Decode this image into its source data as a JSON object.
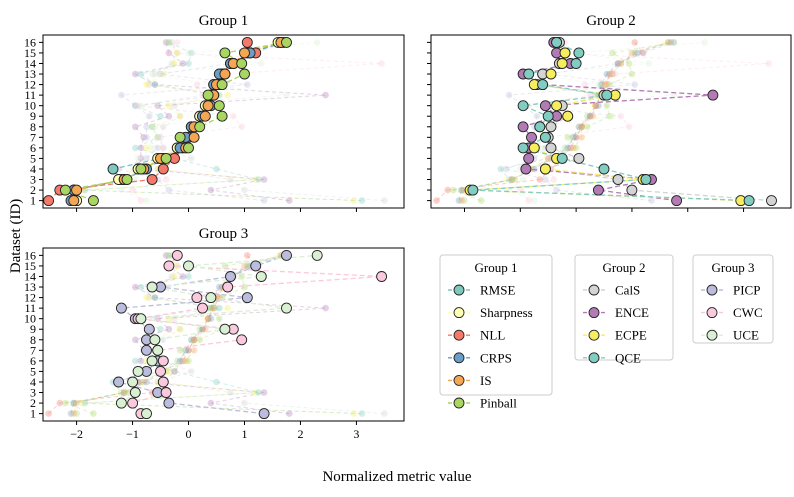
{
  "figure": {
    "ylabel": "Dataset (ID)",
    "xlabel": "Normalized metric value"
  },
  "colors": {
    "RMSE": "#7fc8bd",
    "Sharpness": "#ffffb3",
    "NLL": "#f4796a",
    "CRPS": "#6c9dc6",
    "IS": "#f5a653",
    "Pinball": "#a8d660",
    "CalS": "#d4d4d4",
    "ENCE": "#b27bb5",
    "ECPE": "#f7ee5f",
    "QCE": "#82cdc2",
    "PICP": "#bcbddc",
    "CWC": "#fbc9de",
    "UCE": "#d9f0d3"
  },
  "chart_data": [
    {
      "type": "line",
      "title": "Group 1",
      "xlim": [
        -2.6,
        3.85
      ],
      "ylim": [
        0.3,
        16.7
      ],
      "x_ticks": [
        -2,
        -1,
        0,
        1,
        2,
        3
      ],
      "x_tick_labels": [],
      "y_ticks": [
        1,
        2,
        3,
        4,
        5,
        6,
        7,
        8,
        9,
        10,
        11,
        12,
        13,
        14,
        15,
        16
      ],
      "y": [
        1,
        2,
        3,
        4,
        5,
        6,
        7,
        8,
        9,
        10,
        11,
        12,
        13,
        14,
        15,
        16
      ],
      "series": [
        {
          "name": "RMSE",
          "x": [
            -2.0,
            -2.05,
            -1.2,
            -1.35,
            -0.5,
            -0.2,
            0.0,
            0.1,
            0.2,
            0.35,
            0.45,
            0.45,
            0.65,
            0.8,
            1.05,
            1.65
          ]
        },
        {
          "name": "Sharpness",
          "x": [
            -2.0,
            -2.05,
            -1.25,
            -0.9,
            -0.55,
            -0.2,
            -0.05,
            0.05,
            0.2,
            0.3,
            0.4,
            0.5,
            0.6,
            0.8,
            1.1,
            1.6
          ]
        },
        {
          "name": "NLL",
          "x": [
            -2.5,
            -2.3,
            -0.65,
            -0.45,
            -0.25,
            -0.1,
            0.0,
            0.1,
            0.25,
            0.35,
            0.45,
            0.55,
            0.6,
            0.75,
            1.2,
            1.05
          ]
        },
        {
          "name": "CRPS",
          "x": [
            -2.1,
            -2.05,
            -1.15,
            -0.75,
            -0.45,
            -0.15,
            -0.05,
            0.05,
            0.25,
            0.4,
            0.4,
            0.45,
            0.55,
            0.75,
            1.1,
            1.7
          ]
        },
        {
          "name": "IS",
          "x": [
            -2.05,
            -2.0,
            -1.15,
            -0.8,
            -0.5,
            -0.05,
            0.1,
            0.1,
            0.3,
            0.35,
            0.45,
            0.5,
            0.65,
            0.8,
            1.0,
            1.65
          ]
        },
        {
          "name": "Pinball",
          "x": [
            -1.7,
            -2.2,
            -1.1,
            -0.85,
            -0.4,
            0.0,
            -0.15,
            0.2,
            0.6,
            0.55,
            0.35,
            0.6,
            1.0,
            0.95,
            0.65,
            1.75
          ]
        }
      ]
    },
    {
      "type": "line",
      "title": "Group 2",
      "xlim": [
        -2.6,
        3.85
      ],
      "ylim": [
        0.3,
        16.7
      ],
      "x_ticks": [
        -2,
        -1,
        0,
        1,
        2,
        3
      ],
      "x_tick_labels": [],
      "y_ticks": [
        1,
        2,
        3,
        4,
        5,
        6,
        7,
        8,
        9,
        10,
        11,
        12,
        13,
        14,
        15,
        16
      ],
      "y_tick_labels": [],
      "series": [
        {
          "name": "CalS",
          "x": [
            3.5,
            1.0,
            0.75,
            -0.55,
            0.05,
            -0.45,
            -0.5,
            -0.45,
            -0.15,
            -0.25,
            0.5,
            -0.7,
            -0.6,
            -0.3,
            -0.2,
            -0.3
          ]
        },
        {
          "name": "ENCE",
          "x": [
            1.8,
            0.4,
            1.35,
            -0.9,
            -0.85,
            -0.85,
            -0.8,
            -0.95,
            -0.35,
            -0.55,
            2.45,
            -0.6,
            -0.95,
            -0.1,
            -0.35,
            -0.4
          ]
        },
        {
          "name": "ECPE",
          "x": [
            2.95,
            -1.9,
            1.2,
            -0.55,
            -0.35,
            -0.75,
            -0.55,
            -0.65,
            -0.15,
            -0.35,
            0.7,
            -0.75,
            -0.45,
            -0.25,
            -0.2,
            -0.35
          ]
        },
        {
          "name": "QCE",
          "x": [
            3.1,
            -1.85,
            1.25,
            0.5,
            -0.25,
            -0.95,
            -0.55,
            -0.65,
            -0.5,
            -0.95,
            0.55,
            -0.6,
            -0.85,
            0.0,
            0.05,
            -0.35
          ]
        }
      ]
    },
    {
      "type": "line",
      "title": "Group 3",
      "xlim": [
        -2.6,
        3.85
      ],
      "ylim": [
        0.3,
        16.7
      ],
      "x_ticks": [
        -2,
        -1,
        0,
        1,
        2,
        3
      ],
      "x_tick_labels": [
        "−2",
        "−1",
        "0",
        "1",
        "2",
        "3"
      ],
      "y_ticks": [
        1,
        2,
        3,
        4,
        5,
        6,
        7,
        8,
        9,
        10,
        11,
        12,
        13,
        14,
        15,
        16
      ],
      "y": [
        1,
        2,
        3,
        4,
        5,
        6,
        7,
        8,
        9,
        10,
        11,
        12,
        13,
        14,
        15,
        16
      ],
      "series": [
        {
          "name": "PICP",
          "x": [
            1.35,
            -0.35,
            -0.55,
            -1.25,
            -0.75,
            -0.55,
            -0.75,
            -0.75,
            -0.7,
            -0.95,
            -1.2,
            1.05,
            -0.5,
            0.75,
            1.2,
            1.75
          ]
        },
        {
          "name": "CWC",
          "x": [
            -0.85,
            -1.0,
            -0.4,
            -0.45,
            -0.5,
            -0.45,
            -0.55,
            0.95,
            0.8,
            -0.9,
            0.25,
            0.15,
            0.7,
            3.45,
            -0.35,
            -0.2
          ]
        },
        {
          "name": "UCE",
          "x": [
            -0.75,
            -1.2,
            -0.95,
            -1.0,
            -0.9,
            -0.65,
            -0.55,
            -0.6,
            0.65,
            -0.85,
            1.75,
            0.4,
            -0.65,
            1.3,
            0.0,
            2.3
          ]
        }
      ]
    }
  ],
  "legends": [
    {
      "title": "Group 1",
      "entries": [
        "RMSE",
        "Sharpness",
        "NLL",
        "CRPS",
        "IS",
        "Pinball"
      ]
    },
    {
      "title": "Group 2",
      "entries": [
        "CalS",
        "ENCE",
        "ECPE",
        "QCE"
      ]
    },
    {
      "title": "Group 3",
      "entries": [
        "PICP",
        "CWC",
        "UCE"
      ]
    }
  ]
}
